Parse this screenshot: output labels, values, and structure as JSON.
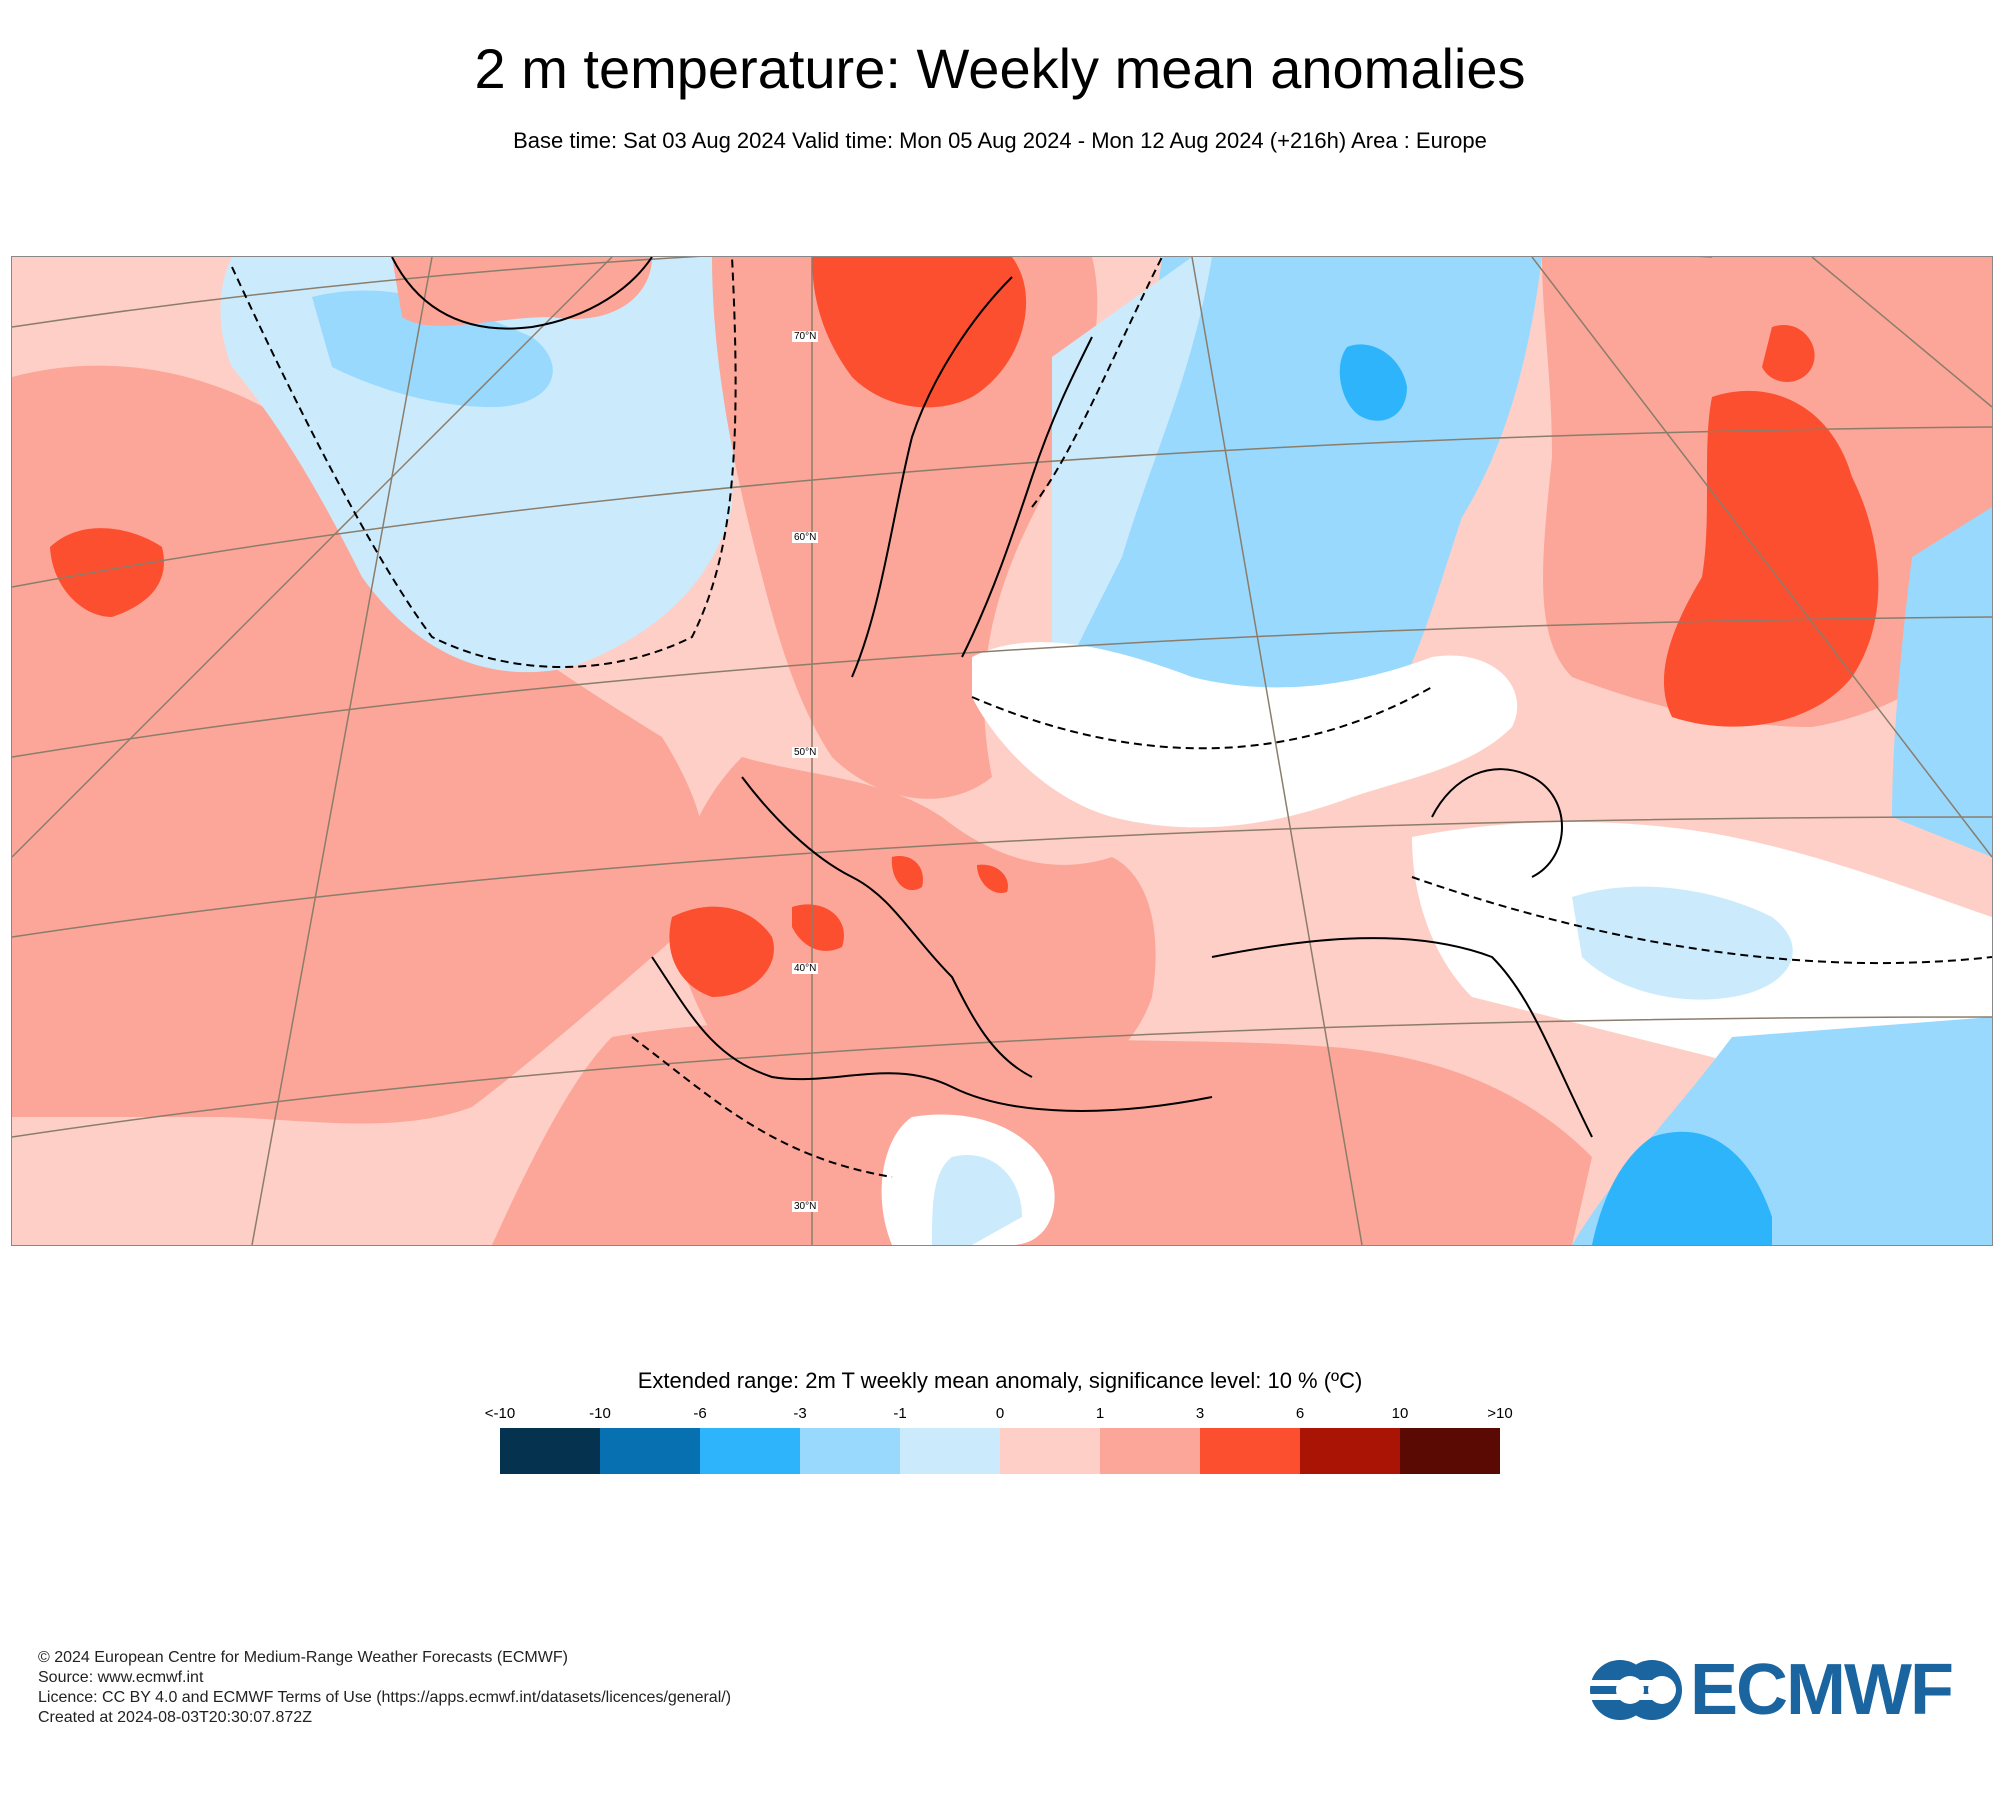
{
  "title": "2 m temperature: Weekly mean anomalies",
  "subtitle": "Base time: Sat 03 Aug 2024 Valid time: Mon 05 Aug 2024 - Mon 12 Aug 2024 (+216h) Area : Europe",
  "map": {
    "latitude_labels": [
      "70°N",
      "60°N",
      "50°N",
      "40°N",
      "30°N"
    ]
  },
  "legend": {
    "title": "Extended range: 2m T weekly mean anomaly, significance level: 10 % (ºC)",
    "ticks": [
      "<-10",
      "-10",
      "-6",
      "-3",
      "-1",
      "0",
      "1",
      "3",
      "6",
      "10",
      ">10"
    ],
    "colors": [
      "#04324f",
      "#0670b0",
      "#2db4fb",
      "#99d9fd",
      "#cbebfd",
      "#fecfc7",
      "#fba698",
      "#fc4f2f",
      "#a91405",
      "#5a0a03"
    ]
  },
  "footer": {
    "copyright": "© 2024 European Centre for Medium-Range Weather Forecasts (ECMWF)",
    "source": "Source: www.ecmwf.int",
    "licence": "Licence: CC BY 4.0 and ECMWF Terms of Use (https://apps.ecmwf.int/datasets/licences/general/)",
    "created": "Created at 2024-08-03T20:30:07.872Z"
  },
  "logo": {
    "text": "ECMWF",
    "color": "#1a64a0"
  }
}
